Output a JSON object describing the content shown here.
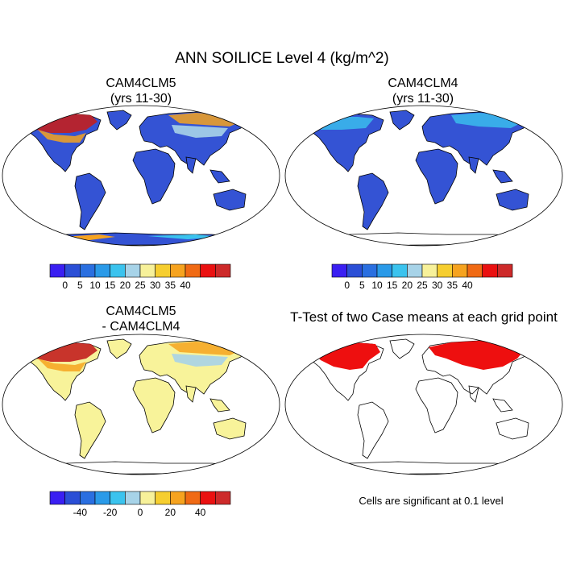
{
  "title": "ANN SOILICE Level 4 (kg/m^2)",
  "panels": {
    "top_left": {
      "title_line1": "CAM4CLM5",
      "title_line2": "(yrs 11-30)"
    },
    "top_right": {
      "title_line1": "CAM4CLM4",
      "title_line2": "(yrs 11-30)"
    },
    "bottom_left": {
      "title_line1": "CAM4CLM5",
      "title_line2": "- CAM4CLM4"
    },
    "bottom_right": {
      "title": "T-Test of two Case means at each grid point"
    }
  },
  "colorbar_levels": {
    "labels": [
      "0",
      "5",
      "10",
      "15",
      "20",
      "25",
      "30",
      "35",
      "40"
    ],
    "colors": [
      "#3a1ff2",
      "#2b4fd6",
      "#2a6fe0",
      "#2a9ae8",
      "#3bc3ee",
      "#a7d3e8",
      "#f7f19a",
      "#f6ce2f",
      "#f6a31f",
      "#f06a14",
      "#ea1111",
      "#cd2a2a"
    ]
  },
  "colorbar_diff": {
    "labels": [
      "-40",
      "-20",
      "0",
      "20",
      "40"
    ],
    "colors": [
      "#3a1ff2",
      "#2b4fd6",
      "#2a6fe0",
      "#2a9ae8",
      "#3bc3ee",
      "#a7d3e8",
      "#f7f19a",
      "#f6ce2f",
      "#f6a31f",
      "#f06a14",
      "#ea1111",
      "#cd2a2a"
    ]
  },
  "significance_note": "Cells are significant at 0.1 level",
  "colors": {
    "land_base_abs": "#3453d4",
    "land_base_diff": "#f8f39a",
    "significant": "#ee0f0f",
    "high": "#c21f1f",
    "warm": "#f6a31f"
  }
}
